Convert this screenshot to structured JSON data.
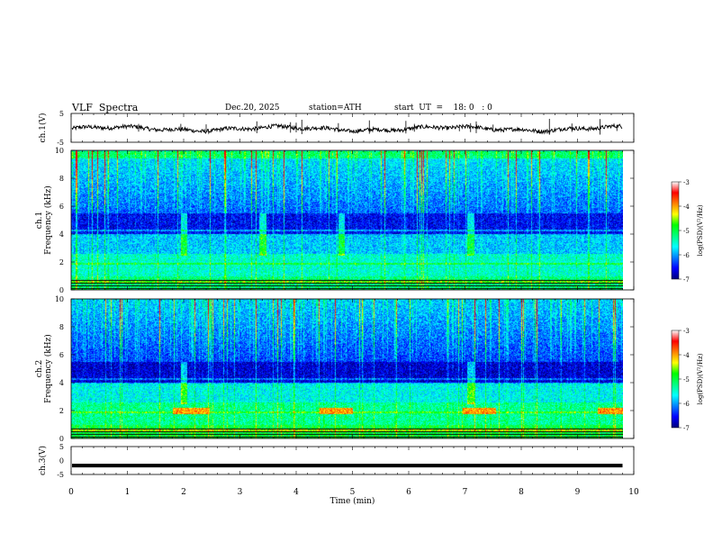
{
  "header": {
    "title": "VLF  Spectra",
    "date": "Dec.20, 2025",
    "station": "station=ATH",
    "start": "start  UT  =    18: 0   : 0"
  },
  "chart_data": [
    {
      "type": "line",
      "name": "ch1-waveform",
      "ylabel": "ch.1(V)",
      "ylim": [
        -5,
        5
      ],
      "yticks": [
        "5",
        "-5"
      ],
      "xlim": [
        0,
        10
      ],
      "baseline_v": 0,
      "spike_times_min": [
        1.2,
        1.95,
        2.4,
        3.3,
        3.9,
        4.0,
        4.1,
        4.75,
        5.3,
        5.95,
        6.1,
        6.9,
        7.1,
        7.2,
        7.5,
        8.5,
        8.9,
        9.4,
        9.7
      ]
    },
    {
      "type": "heatmap",
      "name": "ch1-spectrogram",
      "ylabel_lines": [
        "ch.1",
        "Frequency  (kHz)"
      ],
      "ylim": [
        0,
        10
      ],
      "yticks": [
        "0",
        "2",
        "4",
        "6",
        "8",
        "10"
      ],
      "xlim": [
        0,
        10
      ],
      "colorbar": {
        "label": "log(PSD)(V²/Hz)",
        "range": [
          -7,
          -3
        ],
        "ticks": [
          "-3",
          "-4",
          "-5",
          "-6",
          "-7"
        ]
      },
      "burst_times_min": [
        2.0,
        3.4,
        4.8,
        7.1
      ]
    },
    {
      "type": "heatmap",
      "name": "ch2-spectrogram",
      "ylabel_lines": [
        "ch.2",
        "Frequency  (kHz)"
      ],
      "ylim": [
        0,
        10
      ],
      "yticks": [
        "0",
        "2",
        "4",
        "6",
        "8",
        "10"
      ],
      "xlim": [
        0,
        10
      ],
      "colorbar": {
        "label": "log(PSD)(V²/Hz)",
        "range": [
          -7,
          -3
        ],
        "ticks": [
          "-3",
          "-4",
          "-5",
          "-6",
          "-7"
        ]
      },
      "burst_times_min": [
        2.0,
        7.1
      ],
      "band_segments_min": [
        [
          1.8,
          2.45
        ],
        [
          4.4,
          5.0
        ],
        [
          6.95,
          7.55
        ],
        [
          9.35,
          9.8
        ]
      ]
    },
    {
      "type": "line",
      "name": "ch3-waveform",
      "ylabel": "ch.3(V)",
      "ylim": [
        -5,
        5
      ],
      "yticks": [
        "5",
        "0",
        "-5"
      ],
      "xlim": [
        0,
        10
      ],
      "level_v": -1.8
    }
  ],
  "xaxis": {
    "label": "Time  (min)",
    "ticks": [
      "0",
      "1",
      "2",
      "3",
      "4",
      "5",
      "6",
      "7",
      "8",
      "9",
      "10"
    ],
    "data_end_min": 9.8
  },
  "colors": {
    "colormap": [
      "#00007a",
      "#0000ff",
      "#0080ff",
      "#00ffff",
      "#00ff80",
      "#00ff00",
      "#ffff00",
      "#ff8000",
      "#ff0000",
      "#ffffff"
    ],
    "trace": "#000000"
  }
}
